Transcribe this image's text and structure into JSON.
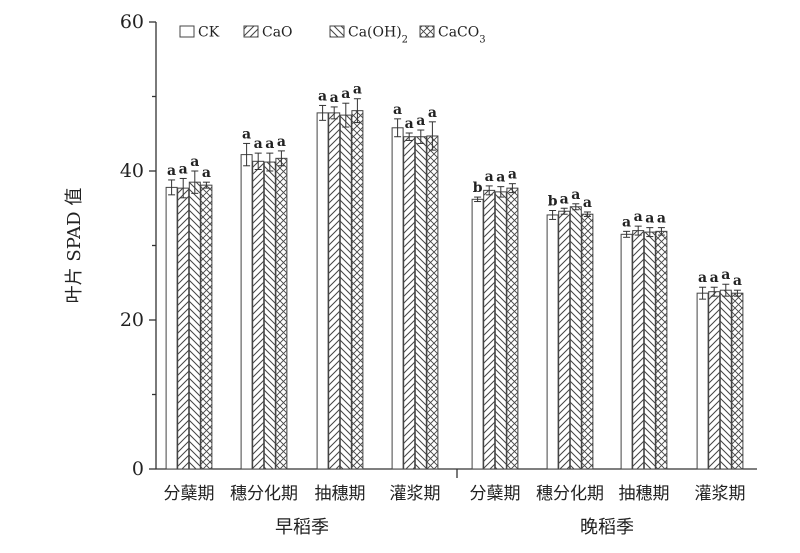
{
  "chart_data": {
    "type": "bar",
    "ylabel": "叶片 SPAD 值",
    "ylim": [
      0,
      60
    ],
    "yticks": [
      0,
      20,
      40,
      60
    ],
    "grid": false,
    "legend_position": "top-left",
    "categories": [
      "分蘖期",
      "穗分化期",
      "抽穗期",
      "灌浆期",
      "分蘖期",
      "穗分化期",
      "抽穗期",
      "灌浆期"
    ],
    "groups": [
      {
        "label": "早稻季",
        "categories": [
          "分蘖期",
          "穗分化期",
          "抽穗期",
          "灌浆期"
        ]
      },
      {
        "label": "晚稻季",
        "categories": [
          "分蘖期",
          "穗分化期",
          "抽穗期",
          "灌浆期"
        ]
      }
    ],
    "series": [
      {
        "name": "CK",
        "name_main": "CK",
        "name_sub": "",
        "name_tail": "",
        "pattern": "blank",
        "values": [
          37.8,
          42.2,
          47.8,
          45.8,
          36.2,
          34.1,
          31.5,
          23.6
        ],
        "errors": [
          1.0,
          1.5,
          1.0,
          1.2,
          0.3,
          0.6,
          0.4,
          0.8
        ],
        "significance": [
          "a",
          "a",
          "a",
          "a",
          "b",
          "b",
          "a",
          "a"
        ]
      },
      {
        "name": "CaO",
        "name_main": "CaO",
        "name_sub": "",
        "name_tail": "",
        "pattern": "diagonal-up",
        "values": [
          37.7,
          41.3,
          47.8,
          44.6,
          37.4,
          34.6,
          32.0,
          23.8
        ],
        "errors": [
          1.3,
          1.1,
          0.8,
          0.5,
          0.6,
          0.4,
          0.6,
          0.6
        ],
        "significance": [
          "a",
          "a",
          "a",
          "a",
          "a",
          "a",
          "a",
          "a"
        ]
      },
      {
        "name": "Ca(OH)2",
        "name_main": "Ca(OH)",
        "name_sub": "2",
        "name_tail": "",
        "pattern": "diagonal-down",
        "values": [
          38.5,
          41.2,
          47.5,
          44.6,
          37.2,
          35.2,
          31.8,
          24.0
        ],
        "errors": [
          1.5,
          1.2,
          1.6,
          0.9,
          0.7,
          0.4,
          0.6,
          0.8
        ],
        "significance": [
          "a",
          "a",
          "a",
          "a",
          "a",
          "a",
          "a",
          "a"
        ]
      },
      {
        "name": "CaCO3",
        "name_main": "CaCO",
        "name_sub": "3",
        "name_tail": "",
        "pattern": "crosshatch",
        "values": [
          38.1,
          41.7,
          48.1,
          44.7,
          37.7,
          34.2,
          31.9,
          23.6
        ],
        "errors": [
          0.4,
          1.0,
          1.6,
          1.9,
          0.6,
          0.3,
          0.5,
          0.4
        ],
        "significance": [
          "a",
          "a",
          "a",
          "a",
          "a",
          "a",
          "a",
          "a"
        ]
      }
    ]
  }
}
